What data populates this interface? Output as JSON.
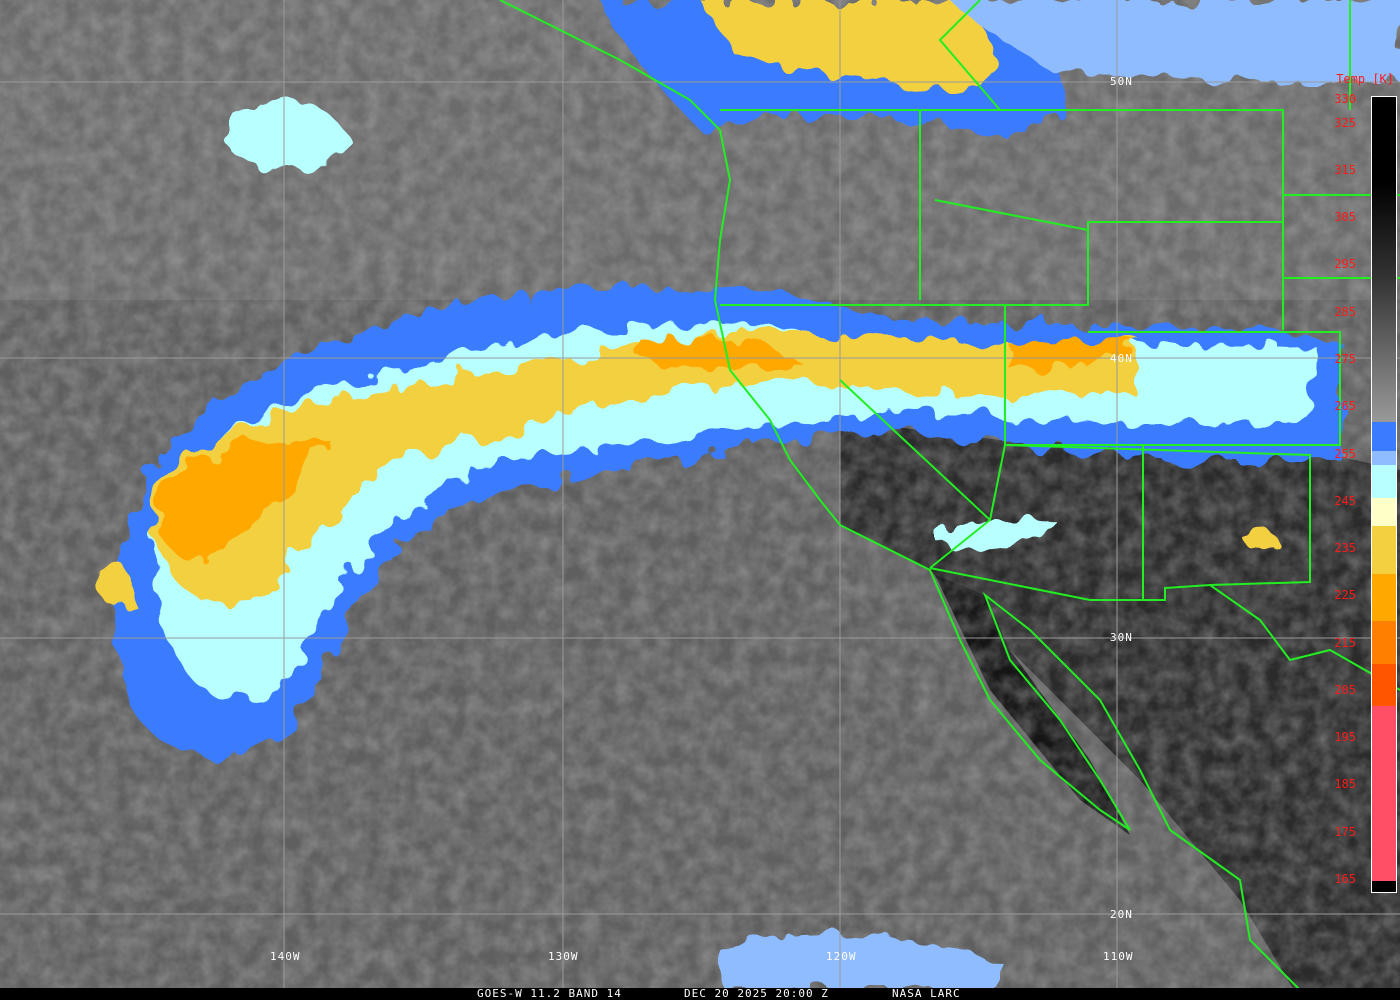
{
  "image": {
    "type": "satellite infrared imagery",
    "caption": {
      "satellite": "GOES-W 11.2 BAND 14",
      "datetime": "DEC 20 2025 20:00 Z",
      "source": "NASA LARC"
    },
    "longitude_labels": [
      "140W",
      "130W",
      "120W",
      "110W"
    ],
    "latitude_labels": [
      "50N",
      "40N",
      "30N",
      "20N"
    ],
    "colors": {
      "borders": "#22ee22",
      "graticule": "#9a9a9a",
      "labels": "#ff1a1a"
    }
  },
  "colorbar": {
    "title": "Temp [K]",
    "range": [
      165,
      330
    ],
    "tick_labels": [
      "330",
      "325",
      "315",
      "305",
      "295",
      "285",
      "275",
      "265",
      "255",
      "245",
      "235",
      "225",
      "215",
      "205",
      "195",
      "185",
      "175",
      "165"
    ],
    "segments": [
      {
        "from": 330,
        "to": 262,
        "color": "gradient-black-to-gray"
      },
      {
        "from": 262,
        "to": 256,
        "color": "#3a7bff"
      },
      {
        "from": 256,
        "to": 253,
        "color": "#8fbcff"
      },
      {
        "from": 253,
        "to": 246,
        "color": "#b8ffff"
      },
      {
        "from": 246,
        "to": 240,
        "color": "#ffffc8"
      },
      {
        "from": 240,
        "to": 230,
        "color": "#f2d040"
      },
      {
        "from": 230,
        "to": 220,
        "color": "#ffa800"
      },
      {
        "from": 220,
        "to": 211,
        "color": "#ff7f00"
      },
      {
        "from": 211,
        "to": 202,
        "color": "#ff5500"
      },
      {
        "from": 202,
        "to": 165,
        "color": "#ff4f66"
      }
    ]
  }
}
